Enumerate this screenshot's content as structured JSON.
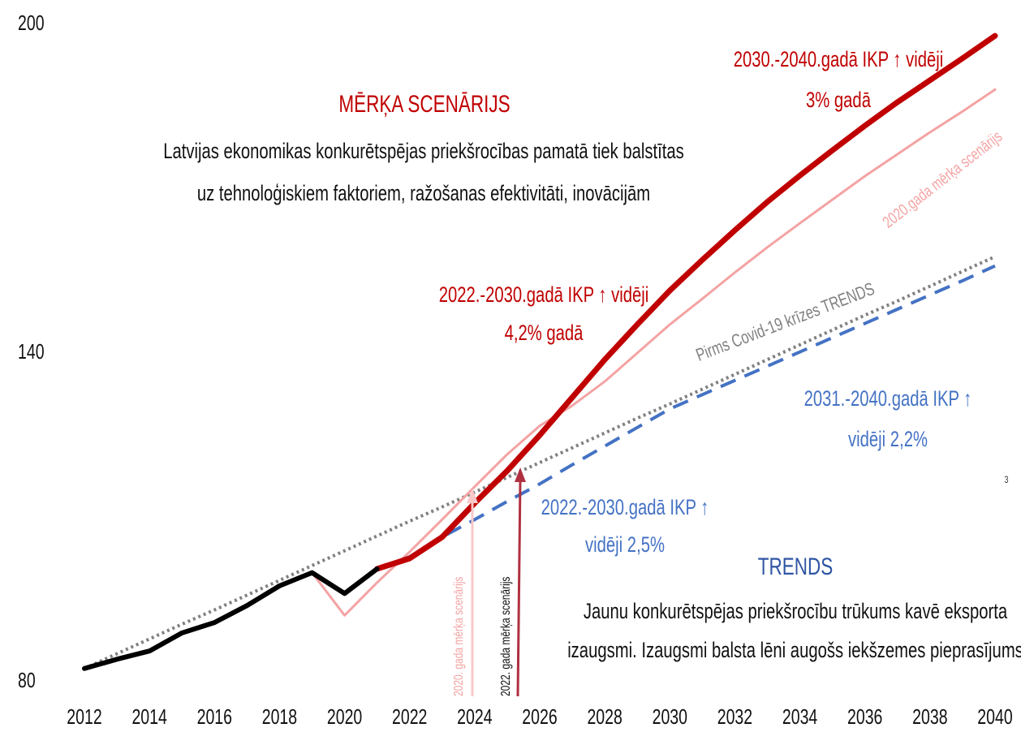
{
  "chart_data": {
    "type": "line",
    "x": [
      2012,
      2013,
      2014,
      2015,
      2016,
      2017,
      2018,
      2019,
      2020,
      2021,
      2022,
      2023,
      2024,
      2025,
      2026,
      2027,
      2028,
      2029,
      2030,
      2031,
      2032,
      2033,
      2034,
      2035,
      2036,
      2037,
      2038,
      2039,
      2040
    ],
    "xlim": [
      2012,
      2040
    ],
    "xticks": [
      2012,
      2014,
      2016,
      2018,
      2020,
      2022,
      2024,
      2026,
      2028,
      2030,
      2032,
      2034,
      2036,
      2038,
      2040
    ],
    "ylim": [
      80,
      200
    ],
    "yticks": [
      80,
      140,
      200
    ],
    "series": [
      {
        "name": "Pirms Covid-19 krīzes TRENDS",
        "color": "#808080",
        "dash": "dotted",
        "values": [
          82.4,
          85.1,
          87.8,
          90.5,
          93.1,
          95.8,
          98.5,
          101.2,
          103.9,
          106.6,
          109.3,
          111.9,
          114.6,
          117.3,
          120,
          122.7,
          125.4,
          128.1,
          130.7,
          133.4,
          136.1,
          138.8,
          141.5,
          144.2,
          146.9,
          149.5,
          152.2,
          154.9,
          157.6
        ]
      },
      {
        "name": "2020.gada mērķa scenārijs",
        "color": "#f4a3a3",
        "dash": "solid",
        "values": [
          null,
          null,
          null,
          null,
          null,
          null,
          null,
          99.9,
          92.1,
          98.1,
          103.7,
          109.6,
          115.6,
          121.5,
          126.7,
          130.4,
          134.8,
          140,
          145.2,
          149.9,
          154.7,
          159.3,
          163.7,
          168,
          172.3,
          176.3,
          180.3,
          184.1,
          188.1
        ]
      },
      {
        "color": "#4472c4",
        "dash": "dashed",
        "values": [
          null,
          null,
          null,
          null,
          null,
          null,
          null,
          null,
          null,
          100.6,
          102.8,
          106.4,
          109.6,
          112.9,
          116.1,
          119.6,
          123,
          126.4,
          129.8,
          132.4,
          135,
          137.6,
          140.2,
          142.8,
          145.4,
          148,
          150.6,
          153.2,
          155.9
        ]
      },
      {
        "color": "#c00000",
        "dash": "solid",
        "values": [
          null,
          null,
          null,
          null,
          null,
          null,
          null,
          null,
          null,
          100.6,
          102.5,
          106.4,
          112.6,
          118.5,
          125,
          131.9,
          138.8,
          145.2,
          151.4,
          157,
          162.4,
          167.6,
          172.4,
          177,
          181.5,
          185.8,
          189.8,
          193.8,
          197.9
        ]
      },
      {
        "color": "#000000",
        "dash": "solid",
        "values": [
          82.4,
          84.1,
          85.6,
          88.9,
          90.8,
          93.9,
          97.5,
          99.9,
          96.1,
          100.6,
          null,
          null,
          null,
          null,
          null,
          null,
          null,
          null,
          null,
          null,
          null,
          null,
          null,
          null,
          null,
          null,
          null,
          null,
          null
        ]
      }
    ],
    "annotations": [
      "MĒRĶA SCENĀRIJS",
      "Latvijas ekonomikas konkurētspējas priekšrocības pamatā tiek balstītas",
      "uz tehnoloģiskiem faktoriem, ražošanas efektivitāti, inovācijām",
      "2030.-2040.gadā IKP ↑ vidēji",
      "3% gadā",
      "2022.-2030.gadā IKP ↑ vidēji",
      "4,2% gadā",
      "2031.-2040.gadā IKP ↑",
      "vidēji 2,2%",
      "2022.-2030.gadā IKP ↑",
      "vidēji 2,5%",
      "TRENDS",
      "Jaunu konkurētspējas priekšrocību trūkums kavē eksporta",
      "izaugsmi. Izaugsmi balsta lēni augošs iekšzemes pieprasījums",
      "3",
      "2020. gada mērķa scenārijs",
      "2022. gada mērķa scenārijs"
    ]
  }
}
